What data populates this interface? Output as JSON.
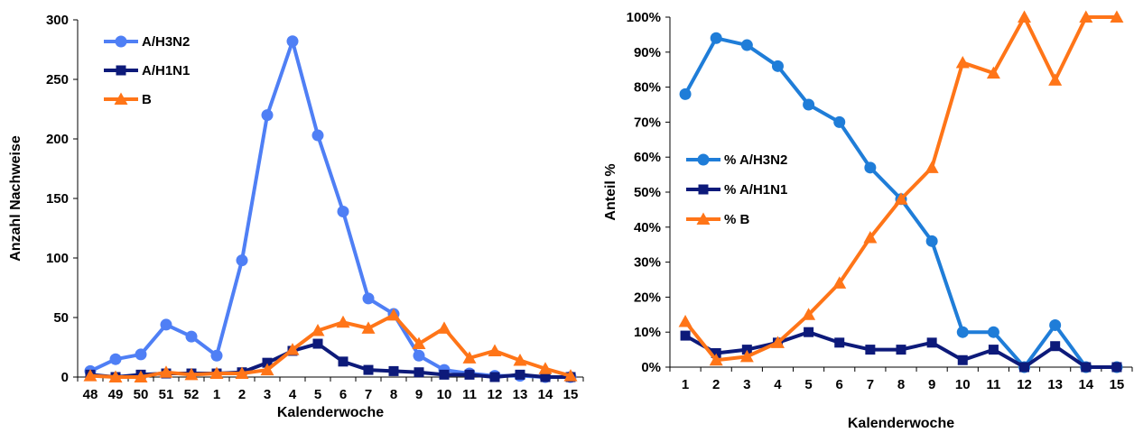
{
  "colors": {
    "h3n2_left": "#4F7FF5",
    "h3n2_right": "#1F7DD8",
    "h1n1": "#0D1A7A",
    "b": "#FF7518"
  },
  "chart_data": [
    {
      "type": "line",
      "xlabel": "Kalenderwoche",
      "ylabel": "Anzahl Nachweise",
      "ylim": [
        0,
        300
      ],
      "yticks": [
        "0",
        "50",
        "100",
        "150",
        "200",
        "250",
        "300"
      ],
      "categories": [
        "48",
        "49",
        "50",
        "51",
        "52",
        "1",
        "2",
        "3",
        "4",
        "5",
        "6",
        "7",
        "8",
        "9",
        "10",
        "11",
        "12",
        "13",
        "14",
        "15"
      ],
      "grid": false,
      "legend_position": "top-left",
      "series": [
        {
          "name": "A/H3N2",
          "marker": "circle",
          "color": "#4F7FF5",
          "values": [
            5,
            15,
            19,
            44,
            34,
            18,
            98,
            220,
            282,
            203,
            139,
            66,
            53,
            18,
            6,
            3,
            1,
            1,
            0,
            0
          ]
        },
        {
          "name": "A/H1N1",
          "marker": "square",
          "color": "#0D1A7A",
          "values": [
            2,
            0,
            2,
            3,
            3,
            3,
            4,
            12,
            22,
            28,
            13,
            6,
            5,
            4,
            2,
            2,
            0,
            2,
            0,
            0
          ]
        },
        {
          "name": "B",
          "marker": "triangle",
          "color": "#FF7518",
          "values": [
            1,
            0,
            0,
            4,
            2,
            3,
            3,
            6,
            23,
            39,
            46,
            41,
            52,
            28,
            41,
            16,
            22,
            14,
            7,
            1
          ]
        }
      ]
    },
    {
      "type": "line",
      "xlabel": "Kalenderwoche",
      "ylabel": "Anteil %",
      "ylim": [
        0,
        100
      ],
      "yticks": [
        "0%",
        "10%",
        "20%",
        "30%",
        "40%",
        "50%",
        "60%",
        "70%",
        "80%",
        "90%",
        "100%"
      ],
      "categories": [
        "1",
        "2",
        "3",
        "4",
        "5",
        "6",
        "7",
        "8",
        "9",
        "10",
        "11",
        "12",
        "13",
        "14",
        "15"
      ],
      "grid": false,
      "legend_position": "center-left",
      "series": [
        {
          "name": "% A/H3N2",
          "marker": "circle",
          "color": "#1F7DD8",
          "values": [
            78,
            94,
            92,
            86,
            75,
            70,
            57,
            48,
            36,
            10,
            10,
            0,
            12,
            0,
            0
          ]
        },
        {
          "name": "% A/H1N1",
          "marker": "square",
          "color": "#0D1A7A",
          "values": [
            9,
            4,
            5,
            7,
            10,
            7,
            5,
            5,
            7,
            2,
            5,
            0,
            6,
            0,
            0
          ]
        },
        {
          "name": "% B",
          "marker": "triangle",
          "color": "#FF7518",
          "values": [
            13,
            2,
            3,
            7,
            15,
            24,
            37,
            48,
            57,
            87,
            84,
            100,
            82,
            100,
            100
          ]
        }
      ]
    }
  ]
}
